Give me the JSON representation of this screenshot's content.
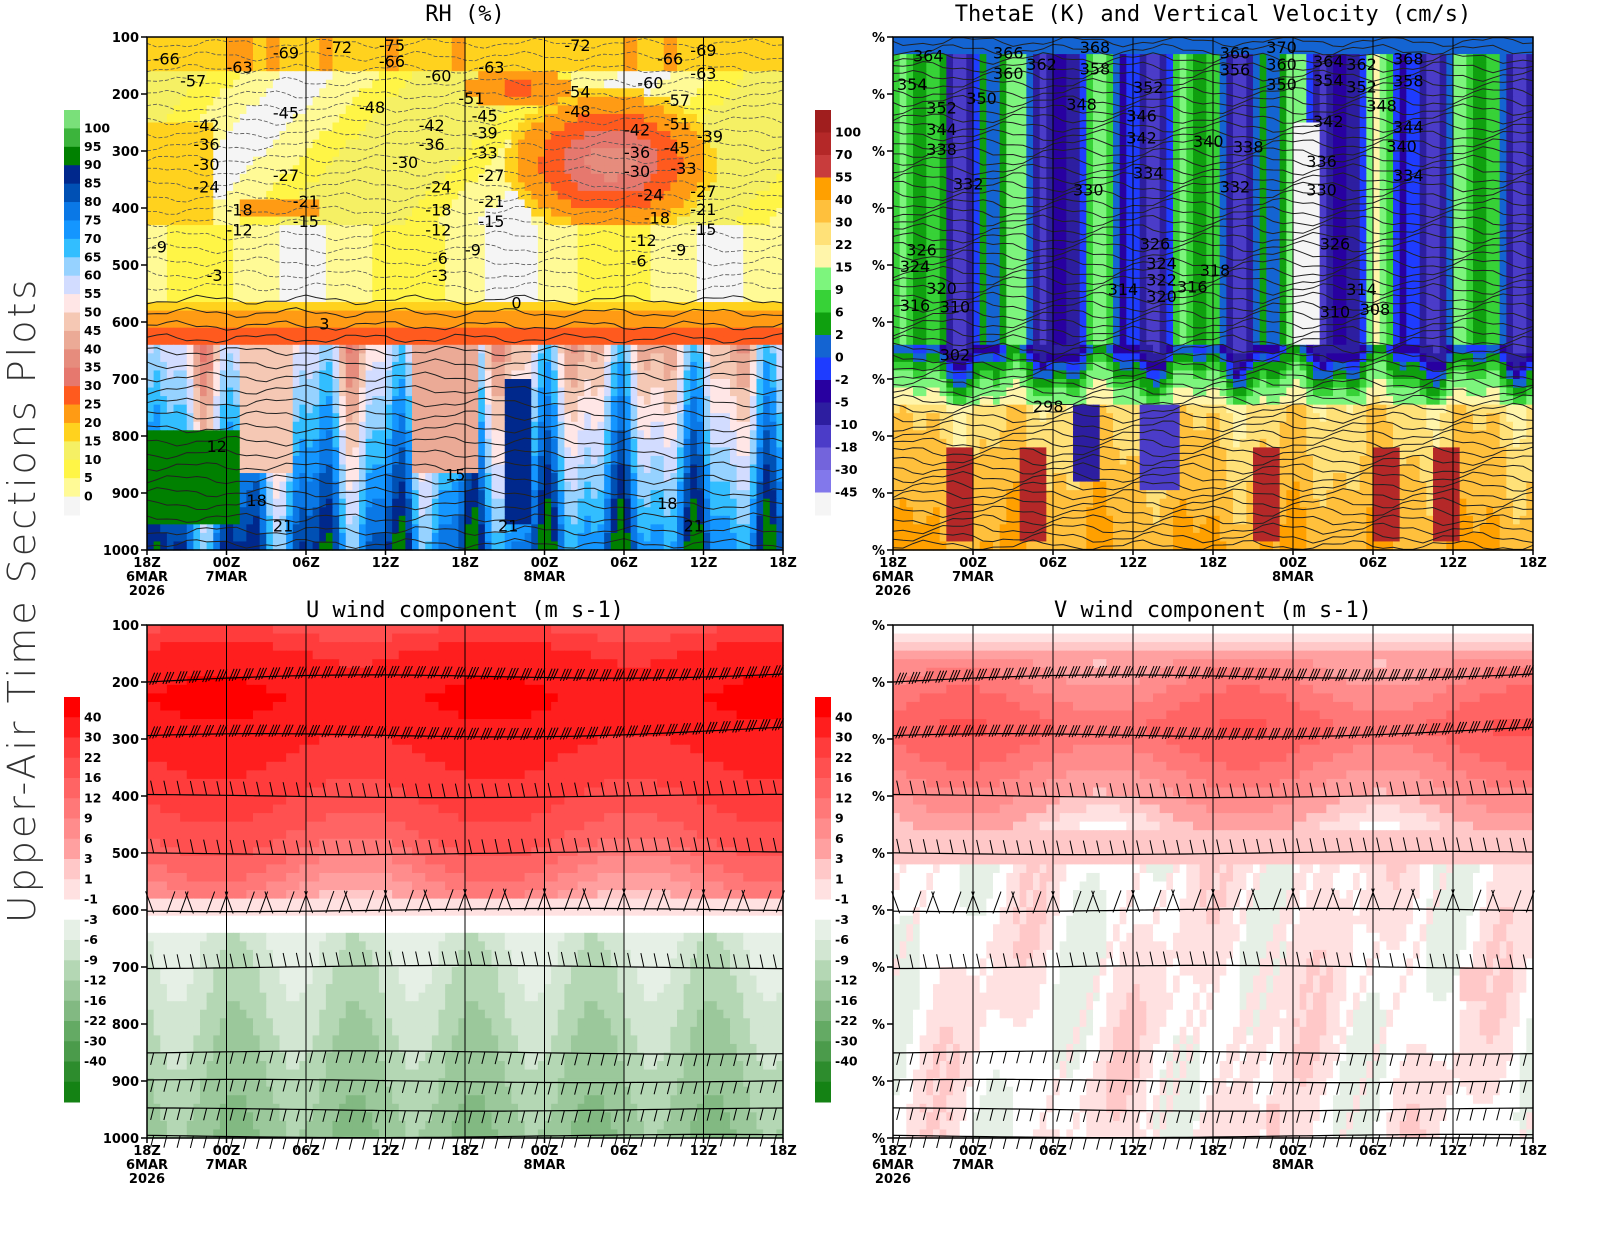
{
  "page": {
    "side_title": "Upper-Air Time Sections Plots"
  },
  "chart_data": [
    {
      "id": "rh",
      "type": "heatmap",
      "title": "RH (%)",
      "overlay": "temperature contours (C)",
      "xlabel": "",
      "ylabel": "",
      "y_ticks": [
        "100",
        "200",
        "300",
        "400",
        "500",
        "600",
        "700",
        "800",
        "900",
        "1000"
      ],
      "ylim": [
        1000,
        100
      ],
      "x_ticks": [
        {
          "time": "18Z",
          "date": "6MAR",
          "year": "2026"
        },
        {
          "time": "00Z",
          "date": "7MAR",
          "year": ""
        },
        {
          "time": "06Z",
          "date": "",
          "year": ""
        },
        {
          "time": "12Z",
          "date": "",
          "year": ""
        },
        {
          "time": "18Z",
          "date": "",
          "year": ""
        },
        {
          "time": "00Z",
          "date": "8MAR",
          "year": ""
        },
        {
          "time": "06Z",
          "date": "",
          "year": ""
        },
        {
          "time": "12Z",
          "date": "",
          "year": ""
        },
        {
          "time": "18Z",
          "date": "",
          "year": ""
        }
      ],
      "colorbar": {
        "labels": [
          "100",
          "95",
          "90",
          "85",
          "80",
          "75",
          "70",
          "65",
          "60",
          "55",
          "50",
          "45",
          "40",
          "35",
          "30",
          "25",
          "20",
          "15",
          "10",
          "5",
          "0"
        ],
        "colors": [
          "#7ae07a",
          "#3cb43c",
          "#008000",
          "#00288c",
          "#0050b4",
          "#0a78e6",
          "#1496ff",
          "#32beff",
          "#96d2ff",
          "#d2dcff",
          "#ffe6e6",
          "#f5c8b4",
          "#ebaa96",
          "#e68c7d",
          "#e6786e",
          "#ff5a1e",
          "#ff9b14",
          "#ffd21e",
          "#f5f064",
          "#fff546",
          "#fffa96",
          "#f5f5f5"
        ]
      },
      "contour_labels": [
        {
          "t": "-66",
          "h": 0.5,
          "p": 140
        },
        {
          "t": "-57",
          "h": 2.5,
          "p": 165
        },
        {
          "t": "-63",
          "h": 6.0,
          "p": 155
        },
        {
          "t": "-69",
          "h": 9.5,
          "p": 130
        },
        {
          "t": "-72",
          "h": 13.5,
          "p": 120
        },
        {
          "t": "-75",
          "h": 17.5,
          "p": 105
        },
        {
          "t": "-66",
          "h": 17.5,
          "p": 145
        },
        {
          "t": "-60",
          "h": 21.0,
          "p": 170
        },
        {
          "t": "-63",
          "h": 25.0,
          "p": 155
        },
        {
          "t": "-72",
          "h": 31.5,
          "p": 115
        },
        {
          "t": "-66",
          "h": 38.5,
          "p": 140
        },
        {
          "t": "-69",
          "h": 41.0,
          "p": 125
        },
        {
          "t": "-63",
          "h": 41.0,
          "p": 152
        },
        {
          "t": "-60",
          "h": 37.0,
          "p": 168
        },
        {
          "t": "-57",
          "h": 39.0,
          "p": 185
        },
        {
          "t": "-54",
          "h": 31.5,
          "p": 198
        },
        {
          "t": "-51",
          "h": 39.0,
          "p": 212
        },
        {
          "t": "-51",
          "h": 23.5,
          "p": 210
        },
        {
          "t": "-48",
          "h": 31.5,
          "p": 218
        },
        {
          "t": "-48",
          "h": 16.0,
          "p": 225
        },
        {
          "t": "-45",
          "h": 9.5,
          "p": 235
        },
        {
          "t": "-45",
          "h": 24.5,
          "p": 240
        },
        {
          "t": "-45",
          "h": 39.0,
          "p": 240
        },
        {
          "t": "-42",
          "h": 3.5,
          "p": 257
        },
        {
          "t": "-42",
          "h": 20.5,
          "p": 257
        },
        {
          "t": "-42",
          "h": 36.0,
          "p": 265
        },
        {
          "t": "-39",
          "h": 24.5,
          "p": 270
        },
        {
          "t": "-39",
          "h": 41.5,
          "p": 276
        },
        {
          "t": "-36",
          "h": 3.5,
          "p": 290
        },
        {
          "t": "-36",
          "h": 20.5,
          "p": 290
        },
        {
          "t": "-36",
          "h": 36.0,
          "p": 290
        },
        {
          "t": "-33",
          "h": 24.5,
          "p": 305
        },
        {
          "t": "-33",
          "h": 39.5,
          "p": 304
        },
        {
          "t": "-30",
          "h": 3.5,
          "p": 325
        },
        {
          "t": "-30",
          "h": 18.5,
          "p": 322
        },
        {
          "t": "-30",
          "h": 36.0,
          "p": 324
        },
        {
          "t": "-27",
          "h": 9.5,
          "p": 345
        },
        {
          "t": "-27",
          "h": 25.0,
          "p": 345
        },
        {
          "t": "-27",
          "h": 41.0,
          "p": 345
        },
        {
          "t": "-24",
          "h": 3.5,
          "p": 365
        },
        {
          "t": "-24",
          "h": 21.0,
          "p": 365
        },
        {
          "t": "-24",
          "h": 37.0,
          "p": 365
        },
        {
          "t": "-21",
          "h": 11.0,
          "p": 390
        },
        {
          "t": "-21",
          "h": 25.0,
          "p": 390
        },
        {
          "t": "-21",
          "h": 41.0,
          "p": 390
        },
        {
          "t": "-18",
          "h": 6.0,
          "p": 405
        },
        {
          "t": "-18",
          "h": 21.0,
          "p": 405
        },
        {
          "t": "-18",
          "h": 37.5,
          "p": 405
        },
        {
          "t": "-15",
          "h": 11.0,
          "p": 425
        },
        {
          "t": "-15",
          "h": 25.0,
          "p": 425
        },
        {
          "t": "-15",
          "h": 41.0,
          "p": 425
        },
        {
          "t": "-12",
          "h": 6.0,
          "p": 440
        },
        {
          "t": "-12",
          "h": 21.0,
          "p": 440
        },
        {
          "t": "-12",
          "h": 36.5,
          "p": 445
        },
        {
          "t": "-9",
          "h": 0.3,
          "p": 470
        },
        {
          "t": "-9",
          "h": 24.0,
          "p": 475
        },
        {
          "t": "-9",
          "h": 39.5,
          "p": 475
        },
        {
          "t": "-6",
          "h": 21.5,
          "p": 490
        },
        {
          "t": "-6",
          "h": 36.5,
          "p": 495
        },
        {
          "t": "-3",
          "h": 4.5,
          "p": 520
        },
        {
          "t": "-3",
          "h": 21.5,
          "p": 520
        },
        {
          "t": "0",
          "h": 27.5,
          "p": 568
        },
        {
          "t": "3",
          "h": 13.0,
          "p": 605
        },
        {
          "t": "12",
          "h": 4.5,
          "p": 820
        },
        {
          "t": "15",
          "h": 22.5,
          "p": 870
        },
        {
          "t": "18",
          "h": 7.5,
          "p": 915
        },
        {
          "t": "18",
          "h": 38.5,
          "p": 920
        },
        {
          "t": "21",
          "h": 9.5,
          "p": 960
        },
        {
          "t": "21",
          "h": 26.5,
          "p": 960
        },
        {
          "t": "21",
          "h": 40.5,
          "p": 960
        }
      ]
    },
    {
      "id": "thetae",
      "type": "heatmap",
      "title": "ThetaE (K) and Vertical Velocity (cm/s)",
      "overlay": "theta-e contours (K)",
      "y_ticks": [
        "%",
        "%",
        "%",
        "%",
        "%",
        "%",
        "%",
        "%",
        "%",
        "%"
      ],
      "x_ticks": [
        {
          "time": "18Z",
          "date": "6MAR",
          "year": "2026"
        },
        {
          "time": "00Z",
          "date": "7MAR",
          "year": ""
        },
        {
          "time": "06Z",
          "date": "",
          "year": ""
        },
        {
          "time": "12Z",
          "date": "",
          "year": ""
        },
        {
          "time": "18Z",
          "date": "",
          "year": ""
        },
        {
          "time": "00Z",
          "date": "8MAR",
          "year": ""
        },
        {
          "time": "06Z",
          "date": "",
          "year": ""
        },
        {
          "time": "12Z",
          "date": "",
          "year": ""
        },
        {
          "time": "18Z",
          "date": "",
          "year": ""
        }
      ],
      "colorbar": {
        "labels": [
          "100",
          "70",
          "55",
          "40",
          "30",
          "22",
          "15",
          "9",
          "6",
          "2",
          "0",
          "-2",
          "-5",
          "-10",
          "-18",
          "-30",
          "-45"
        ],
        "colors": [
          "#a01e1e",
          "#b42828",
          "#c83c3c",
          "#ffa000",
          "#ffc03c",
          "#ffe178",
          "#fff5aa",
          "#7df57d",
          "#37d237",
          "#0fa00f",
          "#1464d2",
          "#1e3cff",
          "#2800a0",
          "#2d1ea0",
          "#4b3cc8",
          "#7364dc",
          "#8278eb",
          "#f5f5f5"
        ]
      },
      "contour_labels": [
        {
          "t": "364",
          "h": 1.5,
          "p": 135
        },
        {
          "t": "366",
          "h": 7.5,
          "p": 130
        },
        {
          "t": "360",
          "h": 7.5,
          "p": 152
        },
        {
          "t": "362",
          "h": 10.0,
          "p": 150
        },
        {
          "t": "368",
          "h": 14.0,
          "p": 120
        },
        {
          "t": "358",
          "h": 14.0,
          "p": 158
        },
        {
          "t": "354",
          "h": 0.3,
          "p": 185
        },
        {
          "t": "352",
          "h": 2.5,
          "p": 198
        },
        {
          "t": "350",
          "h": 5.5,
          "p": 210
        },
        {
          "t": "348",
          "h": 13.0,
          "p": 220
        },
        {
          "t": "352",
          "h": 18.0,
          "p": 190
        },
        {
          "t": "346",
          "h": 17.5,
          "p": 240
        },
        {
          "t": "342",
          "h": 17.5,
          "p": 265
        },
        {
          "t": "344",
          "h": 2.5,
          "p": 250
        },
        {
          "t": "338",
          "h": 2.5,
          "p": 285
        },
        {
          "t": "340",
          "h": 22.5,
          "p": 285
        },
        {
          "t": "338",
          "h": 25.5,
          "p": 295
        },
        {
          "t": "332",
          "h": 4.5,
          "p": 360
        },
        {
          "t": "334",
          "h": 18.0,
          "p": 340
        },
        {
          "t": "330",
          "h": 13.5,
          "p": 370
        },
        {
          "t": "332",
          "h": 24.5,
          "p": 365
        },
        {
          "t": "366",
          "h": 24.5,
          "p": 130
        },
        {
          "t": "356",
          "h": 24.5,
          "p": 160
        },
        {
          "t": "370",
          "h": 28.0,
          "p": 120
        },
        {
          "t": "360",
          "h": 28.0,
          "p": 150
        },
        {
          "t": "350",
          "h": 28.0,
          "p": 185
        },
        {
          "t": "364",
          "h": 31.5,
          "p": 145
        },
        {
          "t": "354",
          "h": 31.5,
          "p": 178
        },
        {
          "t": "362",
          "h": 34.0,
          "p": 150
        },
        {
          "t": "352",
          "h": 34.0,
          "p": 175
        },
        {
          "t": "368",
          "h": 37.5,
          "p": 140
        },
        {
          "t": "358",
          "h": 37.5,
          "p": 165
        },
        {
          "t": "348",
          "h": 35.5,
          "p": 195
        },
        {
          "t": "344",
          "h": 37.5,
          "p": 232
        },
        {
          "t": "342",
          "h": 31.5,
          "p": 250
        },
        {
          "t": "340",
          "h": 37.0,
          "p": 280
        },
        {
          "t": "336",
          "h": 31.0,
          "p": 320
        },
        {
          "t": "334",
          "h": 37.5,
          "p": 345
        },
        {
          "t": "330",
          "h": 31.0,
          "p": 370
        },
        {
          "t": "326",
          "h": 1.0,
          "p": 475
        },
        {
          "t": "324",
          "h": 0.5,
          "p": 490
        },
        {
          "t": "320",
          "h": 2.5,
          "p": 515
        },
        {
          "t": "316",
          "h": 0.5,
          "p": 545
        },
        {
          "t": "310",
          "h": 3.5,
          "p": 575
        },
        {
          "t": "326",
          "h": 18.5,
          "p": 465
        },
        {
          "t": "324",
          "h": 19.0,
          "p": 485
        },
        {
          "t": "322",
          "h": 19.0,
          "p": 500
        },
        {
          "t": "320",
          "h": 19.0,
          "p": 515
        },
        {
          "t": "316",
          "h": 19.5,
          "p": 540
        },
        {
          "t": "314",
          "h": 17.0,
          "p": 545
        },
        {
          "t": "318",
          "h": 23.0,
          "p": 525
        },
        {
          "t": "326",
          "h": 32.0,
          "p": 465
        },
        {
          "t": "314",
          "h": 34.0,
          "p": 545
        },
        {
          "t": "310",
          "h": 32.0,
          "p": 570
        },
        {
          "t": "308",
          "h": 35.0,
          "p": 580
        },
        {
          "t": "302",
          "h": 3.5,
          "p": 660
        },
        {
          "t": "298",
          "h": 10.5,
          "p": 750
        }
      ]
    },
    {
      "id": "u_wind",
      "type": "heatmap",
      "title": "U wind component (m s-1)",
      "overlay": "wind barbs",
      "y_ticks": [
        "100",
        "200",
        "300",
        "400",
        "500",
        "600",
        "700",
        "800",
        "900",
        "1000"
      ],
      "ylim": [
        1000,
        100
      ],
      "x_ticks": [
        {
          "time": "18Z",
          "date": "6MAR",
          "year": "2026"
        },
        {
          "time": "00Z",
          "date": "7MAR",
          "year": ""
        },
        {
          "time": "06Z",
          "date": "",
          "year": ""
        },
        {
          "time": "12Z",
          "date": "",
          "year": ""
        },
        {
          "time": "18Z",
          "date": "",
          "year": ""
        },
        {
          "time": "00Z",
          "date": "8MAR",
          "year": ""
        },
        {
          "time": "06Z",
          "date": "",
          "year": ""
        },
        {
          "time": "12Z",
          "date": "",
          "year": ""
        },
        {
          "time": "18Z",
          "date": "",
          "year": ""
        }
      ],
      "colorbar": {
        "labels": [
          "40",
          "30",
          "22",
          "16",
          "12",
          "9",
          "6",
          "3",
          "1",
          "-1",
          "-3",
          "-6",
          "-9",
          "-12",
          "-16",
          "-22",
          "-30",
          "-40"
        ],
        "colors": [
          "#ff0000",
          "#ff1e1e",
          "#ff3c3c",
          "#ff5050",
          "#ff6464",
          "#ff7878",
          "#ff8c8c",
          "#ffa0a0",
          "#ffc8c8",
          "#ffe1e1",
          "#ffffff",
          "#e6f0e6",
          "#d2e6d2",
          "#b4d7b4",
          "#9bc89b",
          "#82b982",
          "#64aa64",
          "#4b9b4b",
          "#2d8c2d",
          "#148214"
        ]
      },
      "barb_levels": [
        200,
        300,
        400,
        500,
        600,
        700,
        850,
        900,
        950,
        1000
      ]
    },
    {
      "id": "v_wind",
      "type": "heatmap",
      "title": "V wind component (m s-1)",
      "overlay": "wind barbs",
      "y_ticks": [
        "%",
        "%",
        "%",
        "%",
        "%",
        "%",
        "%",
        "%",
        "%",
        "%"
      ],
      "x_ticks": [
        {
          "time": "18Z",
          "date": "6MAR",
          "year": "2026"
        },
        {
          "time": "00Z",
          "date": "7MAR",
          "year": ""
        },
        {
          "time": "06Z",
          "date": "",
          "year": ""
        },
        {
          "time": "12Z",
          "date": "",
          "year": ""
        },
        {
          "time": "18Z",
          "date": "",
          "year": ""
        },
        {
          "time": "00Z",
          "date": "8MAR",
          "year": ""
        },
        {
          "time": "06Z",
          "date": "",
          "year": ""
        },
        {
          "time": "12Z",
          "date": "",
          "year": ""
        },
        {
          "time": "18Z",
          "date": "",
          "year": ""
        }
      ],
      "colorbar": {
        "labels": [
          "40",
          "30",
          "22",
          "16",
          "12",
          "9",
          "6",
          "3",
          "1",
          "-1",
          "-3",
          "-6",
          "-9",
          "-12",
          "-16",
          "-22",
          "-30",
          "-40"
        ],
        "colors": [
          "#ff0000",
          "#ff1e1e",
          "#ff3c3c",
          "#ff5050",
          "#ff6464",
          "#ff7878",
          "#ff8c8c",
          "#ffa0a0",
          "#ffc8c8",
          "#ffe1e1",
          "#ffffff",
          "#e6f0e6",
          "#d2e6d2",
          "#b4d7b4",
          "#9bc89b",
          "#82b982",
          "#64aa64",
          "#4b9b4b",
          "#2d8c2d",
          "#148214"
        ]
      },
      "barb_levels": [
        200,
        300,
        400,
        500,
        600,
        700,
        850,
        900,
        950,
        1000
      ]
    }
  ]
}
